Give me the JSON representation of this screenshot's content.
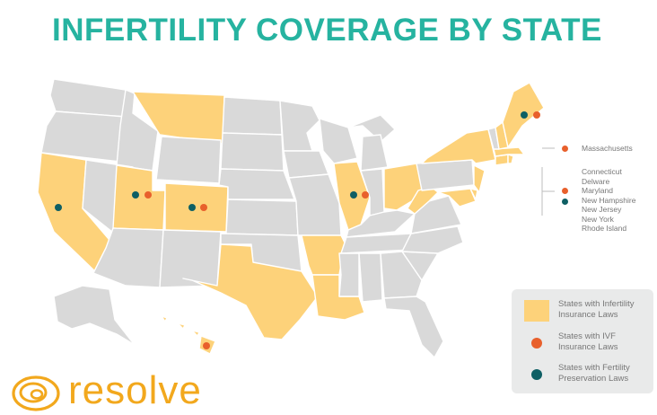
{
  "title": "INFERTILITY COVERAGE BY STATE",
  "colors": {
    "title": "#26b3a0",
    "state_default": "#d9d9d9",
    "state_border": "#ffffff",
    "infertility_law_fill": "#fdd27a",
    "ivf_dot": "#e8602c",
    "fertility_preservation_dot": "#0e5f64",
    "legend_background": "#e9eaea",
    "logo": "#f2a81d"
  },
  "legend": {
    "items": [
      {
        "line1": "States with Infertility",
        "line2": "Insurance Laws",
        "marker": "swatch",
        "color": "#fdd27a"
      },
      {
        "line1": "States with IVF",
        "line2": "Insurance Laws",
        "marker": "dot",
        "color": "#e8602c"
      },
      {
        "line1": "States with Fertility",
        "line2": "Preservation Laws",
        "marker": "dot",
        "color": "#0e5f64"
      }
    ]
  },
  "callouts": {
    "massachusetts": {
      "label": "Massachusetts",
      "markers": [
        "ivf"
      ]
    },
    "northeast": {
      "states": [
        "Connecticut",
        "Delware",
        "Maryland",
        "New Hampshire",
        "New Jersey",
        "New York",
        "Rhode Island"
      ],
      "markers": [
        "ivf",
        "fertility_preservation"
      ]
    }
  },
  "map_data": {
    "infertility_law_states": [
      "Montana",
      "California",
      "Utah",
      "Colorado",
      "Texas",
      "Illinois",
      "Arkansas",
      "Louisiana",
      "Ohio",
      "West Virginia",
      "New York",
      "New Jersey",
      "Maryland",
      "Delaware",
      "Connecticut",
      "Rhode Island",
      "Massachusetts",
      "New Hampshire",
      "Maine",
      "Hawaii"
    ],
    "ivf_law_states": [
      "Utah",
      "Colorado",
      "Illinois",
      "Maine",
      "Hawaii"
    ],
    "fertility_preservation_states": [
      "California",
      "Utah",
      "Colorado",
      "Illinois",
      "Maine"
    ]
  },
  "logo": {
    "icon": "resolve-swirl-icon",
    "wordmark": "resolve"
  }
}
